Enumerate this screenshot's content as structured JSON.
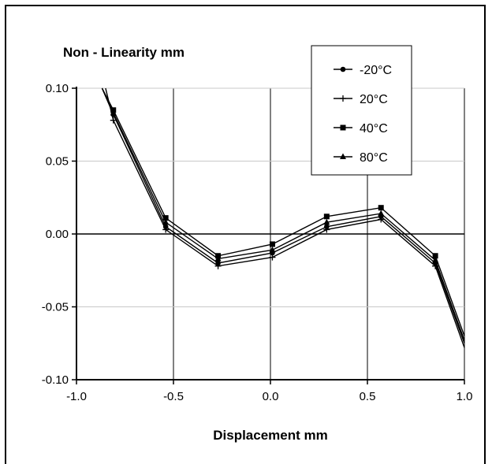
{
  "chart_data": {
    "type": "line",
    "title": "",
    "ylabel": "Non - Linearity mm",
    "xlabel": "Displacement mm",
    "xlim": [
      -1.0,
      1.0
    ],
    "ylim": [
      -0.1,
      0.1
    ],
    "x_ticks": [
      "-1.0",
      "-0.5",
      "0.0",
      "0.5",
      "1.0"
    ],
    "y_ticks": [
      "0.10",
      "0.05",
      "0.00",
      "-0.05",
      "-0.10"
    ],
    "grid": true,
    "legend_position": "top-right",
    "series": [
      {
        "name": "-20°C",
        "marker": "circle",
        "points": [
          [
            -0.868,
            0.1
          ],
          [
            -0.81,
            0.082
          ],
          [
            -0.54,
            0.005
          ],
          [
            -0.27,
            -0.02
          ],
          [
            0.01,
            -0.013
          ],
          [
            0.29,
            0.005
          ],
          [
            0.57,
            0.012
          ],
          [
            0.85,
            -0.02
          ],
          [
            1.0,
            -0.075
          ]
        ]
      },
      {
        "name": "20°C",
        "marker": "plus",
        "points": [
          [
            -0.85,
            0.1
          ],
          [
            -0.81,
            0.078
          ],
          [
            -0.54,
            0.003
          ],
          [
            -0.27,
            -0.022
          ],
          [
            0.01,
            -0.016
          ],
          [
            0.29,
            0.003
          ],
          [
            0.57,
            0.01
          ],
          [
            0.85,
            -0.022
          ],
          [
            1.0,
            -0.078
          ]
        ]
      },
      {
        "name": "40°C",
        "marker": "square",
        "points": [
          [
            -0.868,
            0.1
          ],
          [
            -0.81,
            0.085
          ],
          [
            -0.54,
            0.011
          ],
          [
            -0.27,
            -0.015
          ],
          [
            0.01,
            -0.007
          ],
          [
            0.29,
            0.012
          ],
          [
            0.57,
            0.018
          ],
          [
            0.85,
            -0.015
          ],
          [
            1.0,
            -0.07
          ]
        ]
      },
      {
        "name": "80°C",
        "marker": "triangle",
        "points": [
          [
            -0.868,
            0.1
          ],
          [
            -0.81,
            0.083
          ],
          [
            -0.54,
            0.008
          ],
          [
            -0.27,
            -0.017
          ],
          [
            0.01,
            -0.011
          ],
          [
            0.29,
            0.008
          ],
          [
            0.57,
            0.014
          ],
          [
            0.85,
            -0.018
          ],
          [
            1.0,
            -0.073
          ]
        ]
      }
    ]
  }
}
